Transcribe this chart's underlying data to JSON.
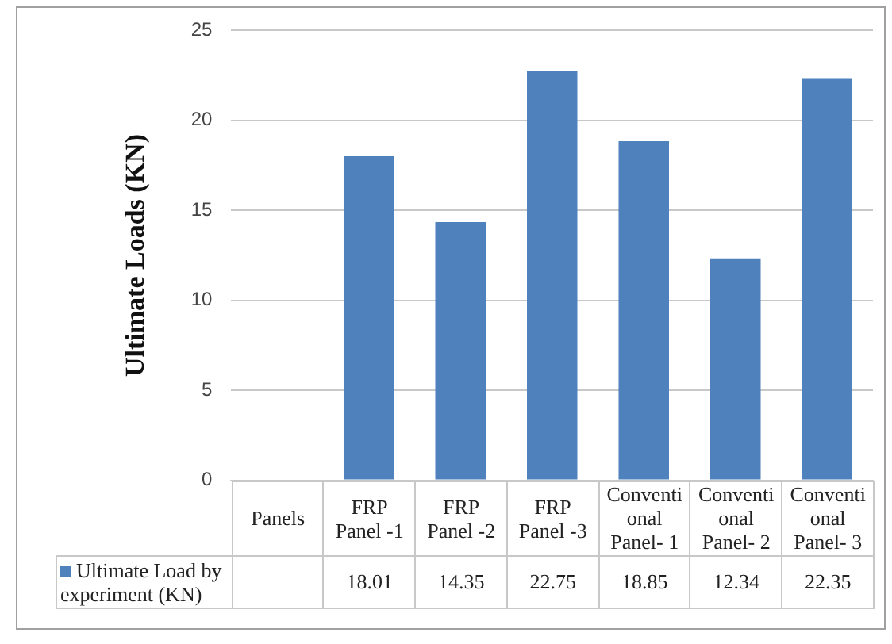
{
  "chart_data": {
    "type": "bar",
    "ylabel": "Ultimate Loads (KN)",
    "categories": [
      "Panels",
      "FRP Panel -1",
      "FRP Panel -2",
      "FRP Panel -3",
      "Conventional Panel- 1",
      "Conventional Panel- 2",
      "Conventional Panel- 3"
    ],
    "series": [
      {
        "name": "Ultimate Load by experiment (KN)",
        "color": "#4f81bd",
        "values": [
          null,
          18.01,
          14.35,
          22.75,
          18.85,
          12.34,
          22.35
        ]
      }
    ],
    "ylim": [
      0,
      25
    ],
    "yticks": [
      0,
      5,
      10,
      15,
      20,
      25
    ],
    "grid": "y",
    "legend": "bottom",
    "data_labels": true
  }
}
